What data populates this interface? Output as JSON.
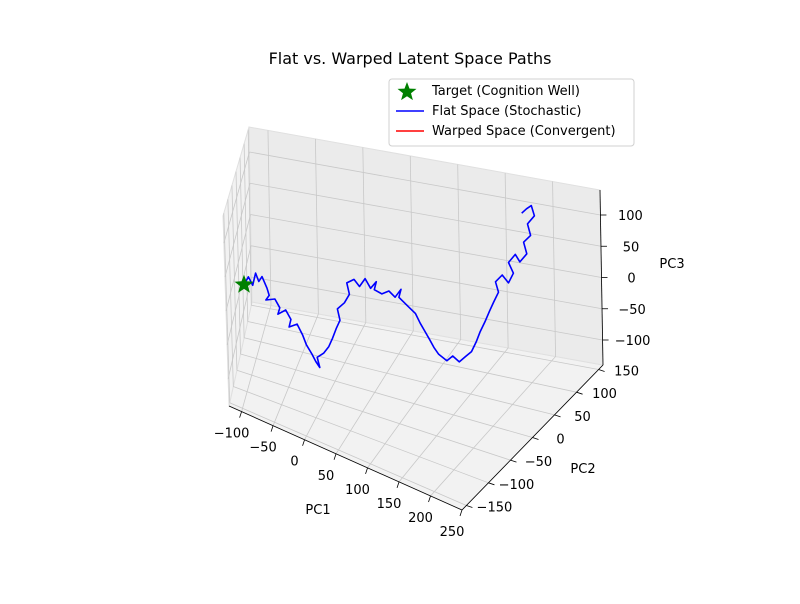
{
  "chart_data": {
    "type": "line3d",
    "title": "Flat vs. Warped Latent Space Paths",
    "xlabel": "PC1",
    "ylabel": "PC2",
    "zlabel": "PC3",
    "xlim": [
      -120,
      250
    ],
    "ylim": [
      -160,
      160
    ],
    "zlim": [
      -140,
      140
    ],
    "xticks": [
      -100,
      -50,
      0,
      50,
      100,
      150,
      200,
      250
    ],
    "yticks": [
      -150,
      -100,
      -50,
      0,
      50,
      100,
      150
    ],
    "zticks": [
      -100,
      -50,
      0,
      50,
      100
    ],
    "xtick_labels": [
      "−100",
      "−50",
      "0",
      "50",
      "100",
      "150",
      "200",
      "250"
    ],
    "ytick_labels": [
      "−150",
      "−100",
      "−50",
      "0",
      "50",
      "100",
      "150"
    ],
    "ztick_labels": [
      "−100",
      "−50",
      "0",
      "50",
      "100"
    ],
    "grid": true,
    "legend_position": "upper-right",
    "target": {
      "label": "Target (Cognition Well)",
      "x": -100,
      "y": -100,
      "z": 20,
      "color": "#008000",
      "marker": "star"
    },
    "series": [
      {
        "name": "Flat Space (Stochastic)",
        "color": "#0000ff",
        "points": [
          [
            -100,
            -100,
            20
          ],
          [
            -94,
            -95,
            32
          ],
          [
            -88,
            -96,
            22
          ],
          [
            -84,
            -92,
            40
          ],
          [
            -80,
            -90,
            28
          ],
          [
            -76,
            -86,
            35
          ],
          [
            -70,
            -82,
            18
          ],
          [
            -68,
            -78,
            6
          ],
          [
            -74,
            -72,
            -6
          ],
          [
            -62,
            -68,
            -2
          ],
          [
            -56,
            -66,
            -14
          ],
          [
            -60,
            -60,
            -28
          ],
          [
            -50,
            -56,
            -20
          ],
          [
            -44,
            -52,
            -34
          ],
          [
            -48,
            -46,
            -50
          ],
          [
            -38,
            -42,
            -44
          ],
          [
            -32,
            -38,
            -60
          ],
          [
            -28,
            -34,
            -76
          ],
          [
            -22,
            -30,
            -90
          ],
          [
            -18,
            -26,
            -102
          ],
          [
            -14,
            -22,
            -112
          ],
          [
            -18,
            -18,
            -100
          ],
          [
            -10,
            -16,
            -92
          ],
          [
            -4,
            -12,
            -82
          ],
          [
            0,
            -8,
            -70
          ],
          [
            4,
            -4,
            -56
          ],
          [
            8,
            0,
            -44
          ],
          [
            4,
            4,
            -30
          ],
          [
            12,
            8,
            -20
          ],
          [
            18,
            10,
            -6
          ],
          [
            14,
            14,
            8
          ],
          [
            22,
            18,
            14
          ],
          [
            28,
            20,
            4
          ],
          [
            34,
            24,
            16
          ],
          [
            40,
            26,
            2
          ],
          [
            46,
            30,
            12
          ],
          [
            42,
            34,
            -4
          ],
          [
            50,
            38,
            -10
          ],
          [
            58,
            40,
            -4
          ],
          [
            64,
            44,
            -14
          ],
          [
            70,
            48,
            -2
          ],
          [
            66,
            52,
            -18
          ],
          [
            76,
            54,
            -30
          ],
          [
            84,
            56,
            -40
          ],
          [
            88,
            60,
            -56
          ],
          [
            92,
            64,
            -70
          ],
          [
            96,
            68,
            -84
          ],
          [
            100,
            70,
            -96
          ],
          [
            104,
            74,
            -108
          ],
          [
            112,
            78,
            -118
          ],
          [
            118,
            80,
            -110
          ],
          [
            124,
            84,
            -120
          ],
          [
            130,
            88,
            -112
          ],
          [
            136,
            90,
            -104
          ],
          [
            140,
            94,
            -90
          ],
          [
            144,
            96,
            -74
          ],
          [
            148,
            100,
            -60
          ],
          [
            152,
            104,
            -44
          ],
          [
            156,
            106,
            -30
          ],
          [
            160,
            110,
            -16
          ],
          [
            156,
            112,
            -2
          ],
          [
            162,
            116,
            8
          ],
          [
            168,
            118,
            -4
          ],
          [
            172,
            122,
            10
          ],
          [
            166,
            124,
            24
          ],
          [
            172,
            128,
            36
          ],
          [
            176,
            130,
            24
          ],
          [
            182,
            134,
            36
          ],
          [
            178,
            136,
            52
          ],
          [
            184,
            140,
            62
          ],
          [
            180,
            142,
            78
          ],
          [
            186,
            146,
            90
          ],
          [
            182,
            148,
            104
          ],
          [
            176,
            150,
            96
          ],
          [
            170,
            152,
            86
          ]
        ]
      },
      {
        "name": "Warped Space (Convergent)",
        "color": "#ff0000",
        "points": []
      }
    ]
  }
}
